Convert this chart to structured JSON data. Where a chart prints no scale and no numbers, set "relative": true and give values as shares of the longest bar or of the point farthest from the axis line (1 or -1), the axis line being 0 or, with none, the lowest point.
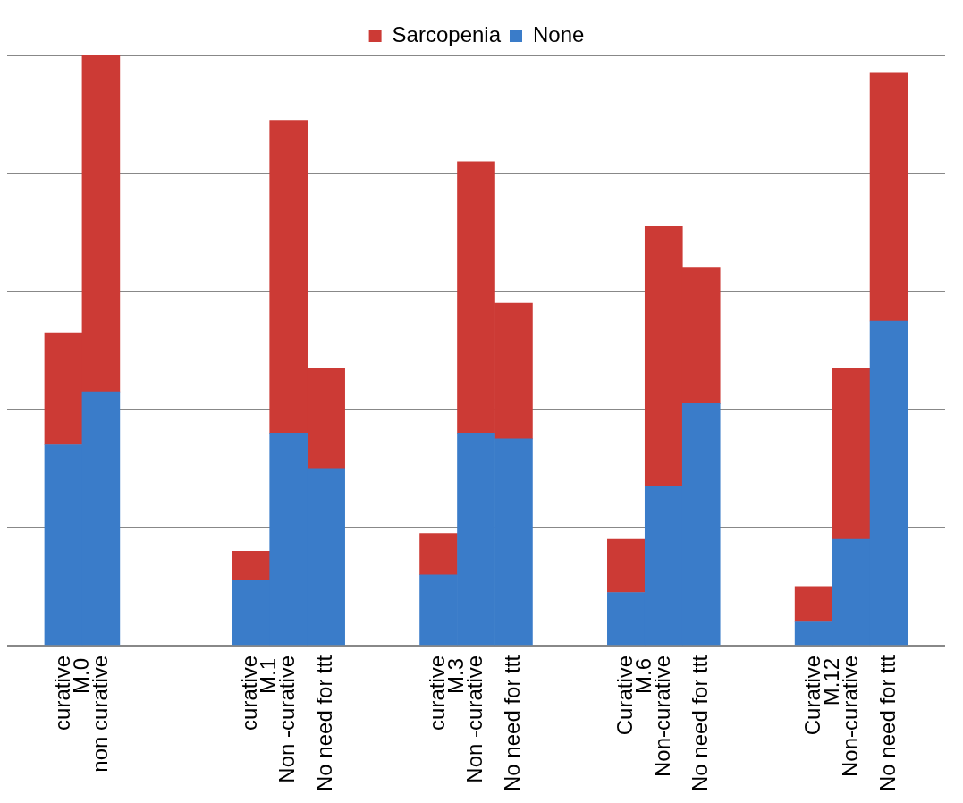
{
  "chart_data": {
    "type": "bar",
    "stacked": true,
    "relative": true,
    "grid": "y",
    "legend": "top",
    "categories": [
      null,
      "curative",
      "non curative",
      null,
      null,
      null,
      "curative",
      "Non -curative",
      "No need for ttt",
      null,
      null,
      "curative",
      "Non -curative",
      "No need for ttt",
      null,
      null,
      "Curative",
      "Non-curative",
      "No need for ttt",
      null,
      null,
      "Curative",
      "Non-curative",
      "No need for ttt",
      null
    ],
    "series": [
      {
        "name": "None",
        "color": "#3a7cc9",
        "values": [
          null,
          0.34,
          0.43,
          null,
          null,
          null,
          0.11,
          0.36,
          0.3,
          null,
          null,
          0.12,
          0.36,
          0.35,
          null,
          null,
          0.09,
          0.27,
          0.41,
          null,
          null,
          0.04,
          0.18,
          0.55,
          null
        ]
      },
      {
        "name": "Sarcopenia",
        "color": "#cc3a35",
        "values": [
          null,
          0.19,
          0.57,
          null,
          null,
          null,
          0.05,
          0.53,
          0.17,
          null,
          null,
          0.07,
          0.46,
          0.23,
          null,
          null,
          0.09,
          0.44,
          0.23,
          null,
          null,
          0.06,
          0.29,
          0.42,
          null
        ]
      }
    ],
    "annotations": [
      "M.0",
      "M.1",
      "M.3",
      "M.6",
      "M.12"
    ]
  }
}
